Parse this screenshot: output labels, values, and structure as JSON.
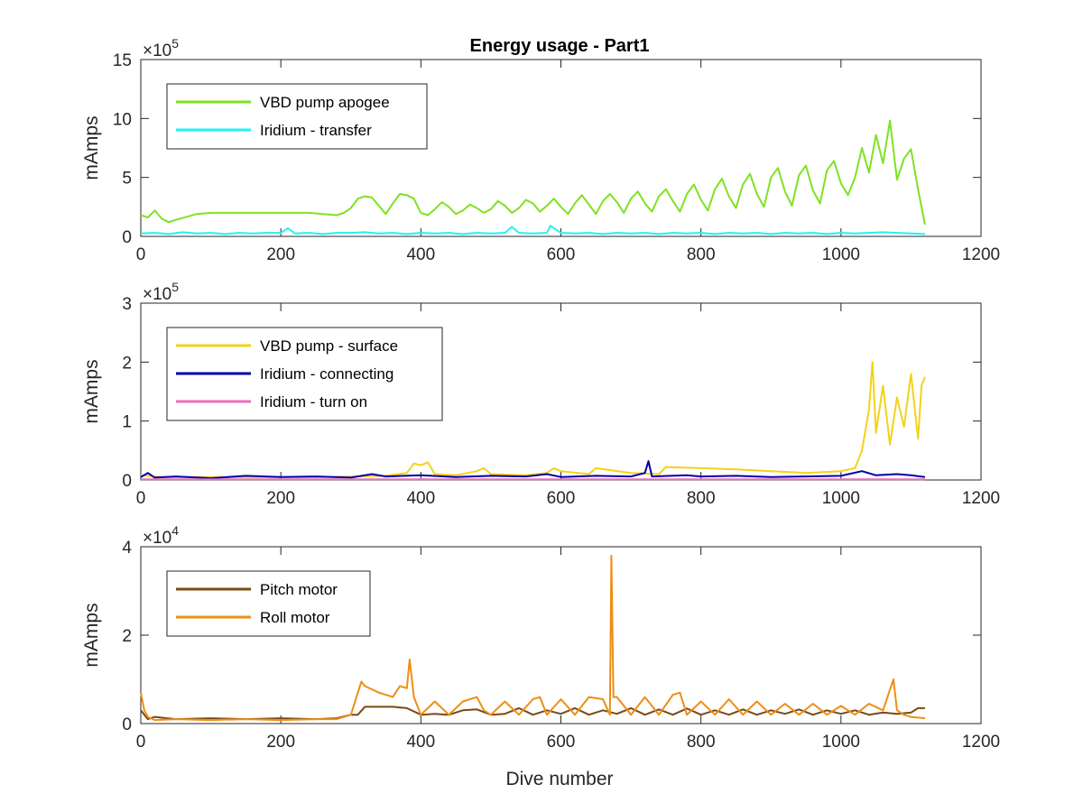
{
  "chart_data": [
    {
      "type": "line",
      "title": "Energy usage - Part1",
      "xlabel": "",
      "ylabel": "mAmps",
      "y_exponent": "10^5",
      "xlim": [
        0,
        1200
      ],
      "ylim": [
        0,
        15
      ],
      "xticks": [
        "0",
        "200",
        "400",
        "600",
        "800",
        "1000",
        "1200"
      ],
      "yticks": [
        "0",
        "5",
        "10",
        "15"
      ],
      "legend_position": "top-left",
      "series": [
        {
          "name": "VBD pump apogee",
          "color": "#7ee221",
          "x": [
            0,
            10,
            20,
            30,
            40,
            50,
            80,
            100,
            150,
            200,
            240,
            260,
            280,
            290,
            300,
            310,
            320,
            330,
            340,
            350,
            360,
            370,
            380,
            390,
            400,
            410,
            420,
            430,
            440,
            450,
            460,
            470,
            480,
            490,
            500,
            510,
            520,
            530,
            540,
            550,
            560,
            570,
            580,
            590,
            600,
            610,
            620,
            630,
            640,
            650,
            660,
            670,
            680,
            690,
            700,
            710,
            720,
            730,
            740,
            750,
            760,
            770,
            780,
            790,
            800,
            810,
            820,
            830,
            840,
            850,
            860,
            870,
            880,
            890,
            900,
            910,
            920,
            930,
            940,
            950,
            960,
            970,
            980,
            990,
            1000,
            1010,
            1020,
            1030,
            1040,
            1050,
            1060,
            1070,
            1080,
            1090,
            1100,
            1110,
            1120
          ],
          "values": [
            1.8,
            1.6,
            2.2,
            1.5,
            1.2,
            1.4,
            1.9,
            2.0,
            2.0,
            2.0,
            2.0,
            1.9,
            1.8,
            2.0,
            2.4,
            3.2,
            3.4,
            3.3,
            2.6,
            1.9,
            2.8,
            3.6,
            3.5,
            3.2,
            2.0,
            1.8,
            2.3,
            2.9,
            2.5,
            1.9,
            2.2,
            2.7,
            2.4,
            2.0,
            2.3,
            3.0,
            2.6,
            2.0,
            2.4,
            3.1,
            2.8,
            2.1,
            2.6,
            3.2,
            2.5,
            1.9,
            2.8,
            3.5,
            2.7,
            1.9,
            3.0,
            3.6,
            2.9,
            2.0,
            3.2,
            3.8,
            2.8,
            2.1,
            3.4,
            4.0,
            3.0,
            2.1,
            3.6,
            4.4,
            3.1,
            2.2,
            4.0,
            4.9,
            3.4,
            2.4,
            4.4,
            5.3,
            3.6,
            2.5,
            5.0,
            5.8,
            3.8,
            2.6,
            5.2,
            6.0,
            3.9,
            2.8,
            5.6,
            6.4,
            4.5,
            3.5,
            5.0,
            7.5,
            5.4,
            8.6,
            6.2,
            9.8,
            4.8,
            6.6,
            7.4,
            4.0,
            1.0
          ]
        },
        {
          "name": "Iridium - transfer",
          "color": "#22f2f2",
          "x": [
            0,
            20,
            40,
            60,
            80,
            100,
            120,
            140,
            160,
            180,
            200,
            210,
            220,
            240,
            260,
            280,
            300,
            320,
            340,
            360,
            380,
            400,
            420,
            440,
            460,
            480,
            500,
            520,
            530,
            540,
            560,
            580,
            585,
            600,
            620,
            640,
            660,
            680,
            700,
            720,
            740,
            760,
            780,
            800,
            820,
            840,
            860,
            880,
            900,
            920,
            940,
            960,
            980,
            1000,
            1020,
            1040,
            1060,
            1080,
            1100,
            1120
          ],
          "values": [
            0.25,
            0.3,
            0.2,
            0.35,
            0.25,
            0.3,
            0.2,
            0.3,
            0.25,
            0.3,
            0.3,
            0.7,
            0.25,
            0.3,
            0.2,
            0.3,
            0.3,
            0.35,
            0.25,
            0.3,
            0.2,
            0.3,
            0.25,
            0.3,
            0.2,
            0.3,
            0.25,
            0.3,
            0.8,
            0.3,
            0.25,
            0.3,
            0.9,
            0.3,
            0.25,
            0.3,
            0.2,
            0.3,
            0.25,
            0.3,
            0.2,
            0.3,
            0.25,
            0.3,
            0.2,
            0.3,
            0.25,
            0.3,
            0.2,
            0.3,
            0.25,
            0.3,
            0.2,
            0.3,
            0.25,
            0.3,
            0.35,
            0.3,
            0.25,
            0.2
          ]
        }
      ]
    },
    {
      "type": "line",
      "title": "",
      "xlabel": "",
      "ylabel": "mAmps",
      "y_exponent": "10^5",
      "xlim": [
        0,
        1200
      ],
      "ylim": [
        0,
        3
      ],
      "xticks": [
        "0",
        "200",
        "400",
        "600",
        "800",
        "1000",
        "1200"
      ],
      "yticks": [
        "0",
        "1",
        "2",
        "3"
      ],
      "legend_position": "top-left",
      "series": [
        {
          "name": "VBD pump - surface",
          "color": "#f3d21a",
          "x": [
            0,
            20,
            40,
            60,
            80,
            100,
            150,
            200,
            250,
            300,
            350,
            380,
            390,
            400,
            410,
            420,
            450,
            480,
            490,
            500,
            550,
            580,
            590,
            600,
            640,
            650,
            700,
            740,
            750,
            800,
            850,
            900,
            950,
            1000,
            1020,
            1030,
            1040,
            1045,
            1050,
            1060,
            1070,
            1080,
            1090,
            1100,
            1110,
            1115,
            1120
          ],
          "values": [
            0.08,
            0.06,
            0.05,
            0.05,
            0.05,
            0.05,
            0.05,
            0.05,
            0.05,
            0.06,
            0.07,
            0.12,
            0.28,
            0.25,
            0.3,
            0.1,
            0.08,
            0.15,
            0.2,
            0.1,
            0.08,
            0.12,
            0.2,
            0.15,
            0.1,
            0.2,
            0.12,
            0.1,
            0.22,
            0.2,
            0.18,
            0.15,
            0.12,
            0.15,
            0.2,
            0.5,
            1.2,
            2.0,
            0.8,
            1.6,
            0.6,
            1.4,
            0.9,
            1.8,
            0.7,
            1.6,
            1.75
          ]
        },
        {
          "name": "Iridium - connecting",
          "color": "#0000a8",
          "x": [
            0,
            10,
            20,
            50,
            100,
            150,
            200,
            250,
            300,
            330,
            350,
            400,
            450,
            500,
            550,
            580,
            600,
            650,
            700,
            720,
            725,
            730,
            780,
            800,
            850,
            900,
            950,
            1000,
            1030,
            1050,
            1080,
            1100,
            1120
          ],
          "values": [
            0.05,
            0.12,
            0.04,
            0.06,
            0.03,
            0.07,
            0.05,
            0.06,
            0.04,
            0.1,
            0.06,
            0.08,
            0.05,
            0.07,
            0.06,
            0.1,
            0.05,
            0.07,
            0.06,
            0.12,
            0.32,
            0.06,
            0.08,
            0.06,
            0.07,
            0.05,
            0.06,
            0.07,
            0.15,
            0.08,
            0.1,
            0.08,
            0.05
          ]
        },
        {
          "name": "Iridium - turn on",
          "color": "#e86ebd",
          "x": [
            0,
            200,
            400,
            600,
            800,
            1000,
            1120
          ],
          "values": [
            0.01,
            0.01,
            0.01,
            0.01,
            0.01,
            0.01,
            0.01
          ]
        }
      ]
    },
    {
      "type": "line",
      "title": "",
      "xlabel": "Dive number",
      "ylabel": "mAmps",
      "y_exponent": "10^4",
      "xlim": [
        0,
        1200
      ],
      "ylim": [
        0,
        4
      ],
      "xticks": [
        "0",
        "200",
        "400",
        "600",
        "800",
        "1000",
        "1200"
      ],
      "yticks": [
        "0",
        "2",
        "4"
      ],
      "legend_position": "top-left",
      "series": [
        {
          "name": "Pitch motor",
          "color": "#7a4a12",
          "x": [
            0,
            10,
            20,
            50,
            100,
            150,
            200,
            250,
            280,
            300,
            310,
            320,
            360,
            380,
            400,
            420,
            440,
            460,
            480,
            500,
            520,
            540,
            560,
            580,
            600,
            620,
            640,
            660,
            680,
            700,
            720,
            740,
            760,
            780,
            800,
            820,
            840,
            860,
            880,
            900,
            920,
            940,
            960,
            980,
            1000,
            1020,
            1040,
            1060,
            1080,
            1100,
            1110,
            1120
          ],
          "values": [
            0.3,
            0.1,
            0.15,
            0.1,
            0.12,
            0.1,
            0.12,
            0.1,
            0.12,
            0.2,
            0.2,
            0.38,
            0.38,
            0.35,
            0.2,
            0.22,
            0.2,
            0.3,
            0.32,
            0.2,
            0.22,
            0.35,
            0.2,
            0.3,
            0.22,
            0.35,
            0.2,
            0.3,
            0.22,
            0.35,
            0.2,
            0.32,
            0.2,
            0.34,
            0.2,
            0.3,
            0.2,
            0.32,
            0.2,
            0.3,
            0.22,
            0.32,
            0.2,
            0.3,
            0.22,
            0.3,
            0.2,
            0.25,
            0.22,
            0.25,
            0.35,
            0.35
          ]
        },
        {
          "name": "Roll motor",
          "color": "#ee8e16",
          "x": [
            0,
            5,
            10,
            20,
            50,
            100,
            150,
            200,
            250,
            280,
            300,
            315,
            320,
            340,
            360,
            370,
            380,
            384,
            390,
            400,
            420,
            440,
            460,
            480,
            490,
            500,
            520,
            540,
            560,
            570,
            580,
            600,
            620,
            640,
            660,
            670,
            672,
            675,
            680,
            700,
            720,
            740,
            760,
            770,
            780,
            800,
            820,
            840,
            860,
            880,
            900,
            920,
            940,
            960,
            980,
            1000,
            1020,
            1040,
            1060,
            1075,
            1080,
            1090,
            1100,
            1120
          ],
          "values": [
            0.7,
            0.3,
            0.15,
            0.08,
            0.1,
            0.08,
            0.1,
            0.08,
            0.1,
            0.1,
            0.2,
            0.95,
            0.85,
            0.7,
            0.6,
            0.85,
            0.8,
            1.45,
            0.6,
            0.2,
            0.5,
            0.2,
            0.5,
            0.6,
            0.3,
            0.2,
            0.5,
            0.2,
            0.55,
            0.6,
            0.2,
            0.55,
            0.2,
            0.6,
            0.55,
            0.2,
            3.8,
            0.6,
            0.6,
            0.2,
            0.6,
            0.2,
            0.65,
            0.7,
            0.2,
            0.5,
            0.2,
            0.55,
            0.2,
            0.5,
            0.2,
            0.45,
            0.2,
            0.45,
            0.2,
            0.4,
            0.2,
            0.45,
            0.3,
            1.0,
            0.3,
            0.2,
            0.15,
            0.12
          ]
        }
      ]
    }
  ]
}
